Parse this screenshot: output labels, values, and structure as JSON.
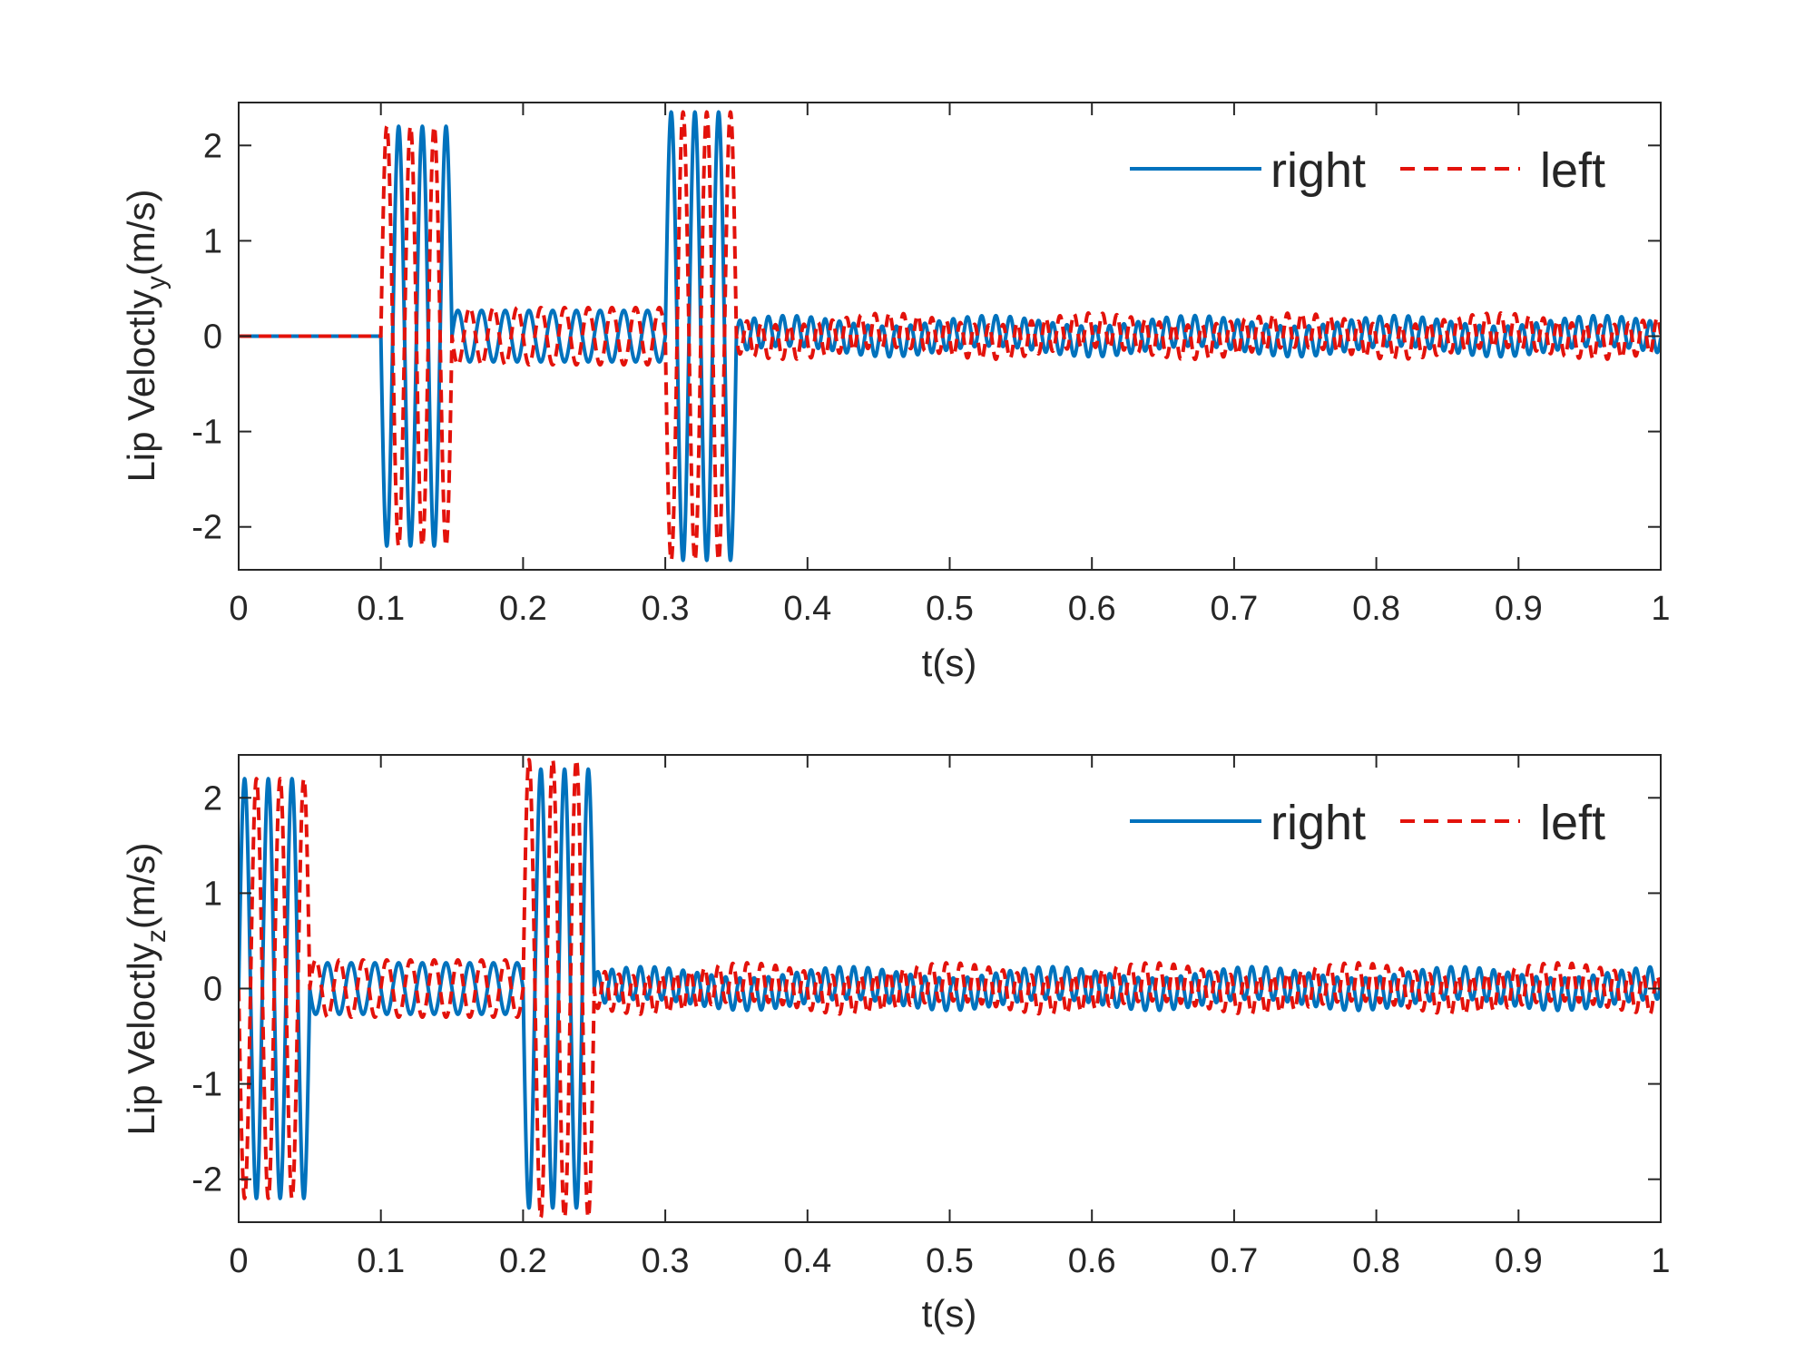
{
  "chart_data": [
    {
      "type": "line",
      "xlabel": "t(s)",
      "ylabel": "Lip Veloctly",
      "ylabel_subscript": "y",
      "ylabel_unit": "(m/s)",
      "xlim": [
        0,
        1
      ],
      "ylim": [
        -2.45,
        2.45
      ],
      "xticks": [
        0,
        0.1,
        0.2,
        0.3,
        0.4,
        0.5,
        0.6,
        0.7,
        0.8,
        0.9,
        1
      ],
      "xtick_labels": [
        "0",
        "0.1",
        "0.2",
        "0.3",
        "0.4",
        "0.5",
        "0.6",
        "0.7",
        "0.8",
        "0.9",
        "1"
      ],
      "yticks": [
        -2,
        -1,
        0,
        1,
        2
      ],
      "ytick_labels": [
        "-2",
        "-1",
        "0",
        "1",
        "2"
      ],
      "grid": false,
      "legend": "top-right",
      "series": [
        {
          "name": "right",
          "color": "#0072bd",
          "style": "solid",
          "segments": [
            {
              "t": [
                0,
                0.1
              ],
              "amplitude": 0,
              "freq_hz": 0,
              "phase": 0
            },
            {
              "t": [
                0.1,
                0.15
              ],
              "amplitude": 2.2,
              "freq_hz": 60,
              "phase": 3.14159
            },
            {
              "t": [
                0.15,
                0.3
              ],
              "amplitude": 0.27,
              "freq_hz": 60,
              "phase": 0
            },
            {
              "t": [
                0.3,
                0.35
              ],
              "amplitude": 2.35,
              "freq_hz": 60,
              "phase": 0
            },
            {
              "t": [
                0.35,
                1.0
              ],
              "amplitude": 0.16,
              "freq_hz": 100,
              "phase": 0
            }
          ]
        },
        {
          "name": "left",
          "color": "#e3120b",
          "style": "dashed",
          "segments": [
            {
              "t": [
                0,
                0.1
              ],
              "amplitude": 0,
              "freq_hz": 0,
              "phase": 0
            },
            {
              "t": [
                0.1,
                0.15
              ],
              "amplitude": 2.2,
              "freq_hz": 60,
              "phase": 0
            },
            {
              "t": [
                0.15,
                0.3
              ],
              "amplitude": 0.3,
              "freq_hz": 60,
              "phase": 3.14159
            },
            {
              "t": [
                0.3,
                0.35
              ],
              "amplitude": 2.35,
              "freq_hz": 60,
              "phase": 3.14159
            },
            {
              "t": [
                0.35,
                1.0
              ],
              "amplitude": 0.18,
              "freq_hz": 100,
              "phase": 3.14159
            }
          ]
        }
      ]
    },
    {
      "type": "line",
      "xlabel": "t(s)",
      "ylabel": "Lip Veloctly",
      "ylabel_subscript": "z",
      "ylabel_unit": "(m/s)",
      "xlim": [
        0,
        1
      ],
      "ylim": [
        -2.45,
        2.45
      ],
      "xticks": [
        0,
        0.1,
        0.2,
        0.3,
        0.4,
        0.5,
        0.6,
        0.7,
        0.8,
        0.9,
        1
      ],
      "xtick_labels": [
        "0",
        "0.1",
        "0.2",
        "0.3",
        "0.4",
        "0.5",
        "0.6",
        "0.7",
        "0.8",
        "0.9",
        "1"
      ],
      "yticks": [
        -2,
        -1,
        0,
        1,
        2
      ],
      "ytick_labels": [
        "-2",
        "-1",
        "0",
        "1",
        "2"
      ],
      "grid": false,
      "legend": "top-right",
      "series": [
        {
          "name": "right",
          "color": "#0072bd",
          "style": "solid",
          "segments": [
            {
              "t": [
                0,
                0.05
              ],
              "amplitude": 2.2,
              "freq_hz": 60,
              "phase": 0
            },
            {
              "t": [
                0.05,
                0.2
              ],
              "amplitude": 0.27,
              "freq_hz": 60,
              "phase": 3.14159
            },
            {
              "t": [
                0.2,
                0.25
              ],
              "amplitude": 2.3,
              "freq_hz": 60,
              "phase": 3.14159
            },
            {
              "t": [
                0.25,
                1.0
              ],
              "amplitude": 0.17,
              "freq_hz": 100,
              "phase": 0
            }
          ]
        },
        {
          "name": "left",
          "color": "#e3120b",
          "style": "dashed",
          "segments": [
            {
              "t": [
                0,
                0.05
              ],
              "amplitude": 2.2,
              "freq_hz": 60,
              "phase": 3.14159
            },
            {
              "t": [
                0.05,
                0.2
              ],
              "amplitude": 0.3,
              "freq_hz": 60,
              "phase": 0
            },
            {
              "t": [
                0.2,
                0.25
              ],
              "amplitude": 2.4,
              "freq_hz": 60,
              "phase": 0
            },
            {
              "t": [
                0.25,
                1.0
              ],
              "amplitude": 0.2,
              "freq_hz": 100,
              "phase": 3.14159
            }
          ]
        }
      ]
    }
  ]
}
